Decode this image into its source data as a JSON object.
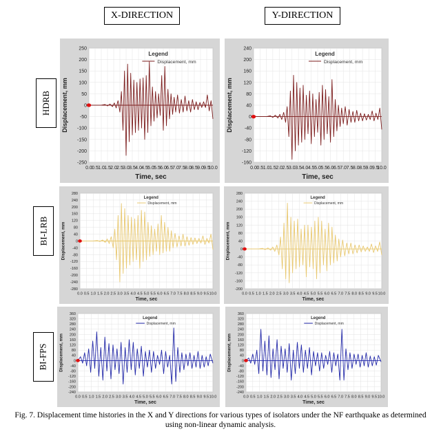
{
  "headers": {
    "x": "X-DIRECTION",
    "y": "Y-DIRECTION"
  },
  "row_labels": {
    "hdrb": "HDRB",
    "bi_lrb": "BI-LRB",
    "bi_fps": "BI-FPS"
  },
  "caption": "Fig. 7. Displacement time histories in the X and Y directions for various types of isolators under the NF earthquake as determined using non-linear dynamic analysis.",
  "chart_data": [
    {
      "id": "hdrb-x",
      "type": "line",
      "color": "#7b1c1c",
      "xlabel": "Time,  sec",
      "ylabel": "Displacement, mm",
      "legend_title": "Legend",
      "series_name": "Displacement, mm",
      "legend_position": "top-right",
      "xlim": [
        0,
        10
      ],
      "xticks": [
        0,
        0.5,
        1,
        1.5,
        2,
        2.5,
        3,
        3.5,
        4,
        4.5,
        5,
        5.5,
        6,
        6.5,
        7,
        7.5,
        8,
        8.5,
        9,
        9.5,
        10
      ],
      "ylim": [
        -250,
        250
      ],
      "yticks": [
        250,
        200,
        150,
        100,
        50,
        0,
        -50,
        -100,
        -150,
        -200,
        -250
      ],
      "t": [
        0,
        0.5,
        1.0,
        1.3,
        1.5,
        1.7,
        1.9,
        2.05,
        2.2,
        2.35,
        2.5,
        2.62,
        2.75,
        2.87,
        3.0,
        3.12,
        3.25,
        3.37,
        3.5,
        3.62,
        3.75,
        3.87,
        4.0,
        4.12,
        4.25,
        4.37,
        4.5,
        4.62,
        4.75,
        4.87,
        5.0,
        5.12,
        5.25,
        5.37,
        5.5,
        5.62,
        5.75,
        5.87,
        6.0,
        6.12,
        6.25,
        6.37,
        6.5,
        6.62,
        6.75,
        6.87,
        7.0,
        7.15,
        7.3,
        7.45,
        7.6,
        7.75,
        7.9,
        8.05,
        8.2,
        8.35,
        8.5,
        8.65,
        8.8,
        8.95,
        9.1,
        9.25,
        9.4,
        9.55,
        9.7,
        9.85,
        10.0
      ],
      "values": [
        0,
        0,
        0,
        3,
        -3,
        5,
        -6,
        10,
        -12,
        20,
        -30,
        60,
        -110,
        150,
        -220,
        180,
        -160,
        140,
        -130,
        110,
        -120,
        100,
        -110,
        115,
        -100,
        120,
        -150,
        130,
        -120,
        190,
        -90,
        80,
        -70,
        60,
        -55,
        50,
        -45,
        130,
        -110,
        170,
        -90,
        70,
        -60,
        50,
        -40,
        35,
        -30,
        45,
        -35,
        25,
        -30,
        40,
        -25,
        20,
        -30,
        25,
        -20,
        15,
        -20,
        12,
        -10,
        15,
        -10,
        45,
        -25,
        20,
        -60
      ]
    },
    {
      "id": "hdrb-y",
      "type": "line",
      "color": "#7b1c1c",
      "xlabel": "Time,  sec",
      "ylabel": "Displacement, mm",
      "legend_title": "Legend",
      "series_name": "Displacement, mm",
      "legend_position": "top-right",
      "xlim": [
        0,
        10
      ],
      "xticks": [
        0,
        0.5,
        1,
        1.5,
        2,
        2.5,
        3,
        3.5,
        4,
        4.5,
        5,
        5.5,
        6,
        6.5,
        7,
        7.5,
        8,
        8.5,
        9,
        9.5,
        10
      ],
      "ylim": [
        -160,
        240
      ],
      "yticks": [
        240,
        200,
        160,
        120,
        80,
        40,
        0,
        -40,
        -80,
        -120,
        -160
      ],
      "t": [
        0,
        0.5,
        1.0,
        1.3,
        1.5,
        1.7,
        1.9,
        2.05,
        2.2,
        2.35,
        2.5,
        2.62,
        2.75,
        2.87,
        3.0,
        3.12,
        3.25,
        3.37,
        3.5,
        3.62,
        3.75,
        3.87,
        4.0,
        4.12,
        4.25,
        4.37,
        4.5,
        4.62,
        4.75,
        4.87,
        5.0,
        5.12,
        5.25,
        5.37,
        5.5,
        5.62,
        5.75,
        5.87,
        6.0,
        6.12,
        6.25,
        6.37,
        6.5,
        6.62,
        6.75,
        6.87,
        7.0,
        7.15,
        7.3,
        7.45,
        7.6,
        7.75,
        7.9,
        8.05,
        8.2,
        8.35,
        8.5,
        8.65,
        8.8,
        8.95,
        9.1,
        9.25,
        9.4,
        9.55,
        9.7,
        9.85,
        10.0
      ],
      "values": [
        0,
        0,
        0,
        3,
        -3,
        5,
        -5,
        8,
        -10,
        15,
        -20,
        35,
        -70,
        90,
        -150,
        145,
        -120,
        120,
        -100,
        100,
        -90,
        110,
        -80,
        75,
        -60,
        90,
        -95,
        80,
        -70,
        60,
        -55,
        85,
        -100,
        110,
        -80,
        95,
        -60,
        70,
        -90,
        130,
        -70,
        60,
        -50,
        40,
        -35,
        30,
        -25,
        35,
        -30,
        25,
        -20,
        18,
        -20,
        22,
        -15,
        12,
        -15,
        10,
        -12,
        8,
        -10,
        20,
        -15,
        12,
        -10,
        30,
        -45
      ]
    },
    {
      "id": "bilrb-x",
      "type": "line",
      "color": "#e8c870",
      "xlabel": "Time,  sec",
      "ylabel": "Displacement,  mm",
      "legend_title": "Legend",
      "series_name": "Displacement, mm",
      "legend_position": "top-right",
      "xlim": [
        0,
        10
      ],
      "xticks": [
        0,
        0.5,
        1,
        1.5,
        2,
        2.5,
        3,
        3.5,
        4,
        4.5,
        5,
        5.5,
        6,
        6.5,
        7,
        7.5,
        8,
        8.5,
        9,
        9.5,
        10
      ],
      "ylim": [
        -280,
        280
      ],
      "yticks": [
        280,
        240,
        200,
        160,
        120,
        80,
        40,
        0,
        -40,
        -80,
        -120,
        -160,
        -200,
        -240,
        -280
      ],
      "t": [
        0,
        0.5,
        1.0,
        1.3,
        1.5,
        1.7,
        1.9,
        2.05,
        2.2,
        2.35,
        2.5,
        2.62,
        2.75,
        2.87,
        3.0,
        3.12,
        3.25,
        3.37,
        3.5,
        3.62,
        3.75,
        3.87,
        4.0,
        4.12,
        4.25,
        4.37,
        4.5,
        4.62,
        4.75,
        4.87,
        5.0,
        5.12,
        5.25,
        5.37,
        5.5,
        5.62,
        5.75,
        5.87,
        6.0,
        6.12,
        6.25,
        6.37,
        6.5,
        6.62,
        6.75,
        6.87,
        7.0,
        7.15,
        7.3,
        7.45,
        7.6,
        7.75,
        7.9,
        8.05,
        8.2,
        8.35,
        8.5,
        8.65,
        8.8,
        8.95,
        9.1,
        9.25,
        9.4,
        9.55,
        9.7,
        9.85,
        10.0
      ],
      "values": [
        0,
        0,
        0,
        3,
        -3,
        6,
        -8,
        12,
        -15,
        25,
        -40,
        70,
        -110,
        150,
        -240,
        220,
        -190,
        190,
        -160,
        150,
        -140,
        140,
        -120,
        130,
        -110,
        150,
        -160,
        180,
        -120,
        170,
        -110,
        110,
        -90,
        90,
        -80,
        70,
        -60,
        100,
        -80,
        150,
        -70,
        110,
        -60,
        80,
        -60,
        60,
        -40,
        45,
        -35,
        30,
        -30,
        40,
        -30,
        25,
        -25,
        20,
        -20,
        18,
        -15,
        15,
        -12,
        30,
        -20,
        15,
        -12,
        40,
        -50
      ]
    },
    {
      "id": "bilrb-y",
      "type": "line",
      "color": "#e8c870",
      "xlabel": "Time,  sec",
      "ylabel": "Displacement,  mm",
      "legend_title": "Legend",
      "series_name": "Displacement, mm",
      "legend_position": "top-right",
      "xlim": [
        0,
        10
      ],
      "xticks": [
        0,
        0.5,
        1,
        1.5,
        2,
        2.5,
        3,
        3.5,
        4,
        4.5,
        5,
        5.5,
        6,
        6.5,
        7,
        7.5,
        8,
        8.5,
        9,
        9.5,
        10
      ],
      "ylim": [
        -200,
        280
      ],
      "yticks": [
        280,
        240,
        200,
        160,
        120,
        80,
        40,
        0,
        -40,
        -80,
        -120,
        -160,
        -200
      ],
      "t": [
        0,
        0.5,
        1.0,
        1.3,
        1.5,
        1.7,
        1.9,
        2.05,
        2.2,
        2.35,
        2.5,
        2.62,
        2.75,
        2.87,
        3.0,
        3.12,
        3.25,
        3.37,
        3.5,
        3.62,
        3.75,
        3.87,
        4.0,
        4.12,
        4.25,
        4.37,
        4.5,
        4.62,
        4.75,
        4.87,
        5.0,
        5.12,
        5.25,
        5.37,
        5.5,
        5.62,
        5.75,
        5.87,
        6.0,
        6.12,
        6.25,
        6.37,
        6.5,
        6.62,
        6.75,
        6.87,
        7.0,
        7.15,
        7.3,
        7.45,
        7.6,
        7.75,
        7.9,
        8.05,
        8.2,
        8.35,
        8.5,
        8.65,
        8.8,
        8.95,
        9.1,
        9.25,
        9.4,
        9.55,
        9.7,
        9.85,
        10.0
      ],
      "values": [
        0,
        0,
        0,
        3,
        -3,
        5,
        -6,
        10,
        -12,
        20,
        -30,
        60,
        -100,
        130,
        -150,
        230,
        -170,
        160,
        -120,
        140,
        -100,
        150,
        -90,
        100,
        -80,
        120,
        -140,
        120,
        -90,
        110,
        -100,
        140,
        -150,
        160,
        -120,
        140,
        -80,
        100,
        -110,
        130,
        -80,
        110,
        -70,
        70,
        -60,
        50,
        -40,
        45,
        -35,
        30,
        -25,
        30,
        -25,
        20,
        -20,
        20,
        -15,
        15,
        -12,
        10,
        -12,
        25,
        -18,
        15,
        -12,
        35,
        -30
      ]
    },
    {
      "id": "bifps-x",
      "type": "line",
      "color": "#2228a8",
      "xlabel": "Time,  sec",
      "ylabel": "Displacement,  mm",
      "legend_title": "Legend",
      "series_name": "Displacement, mm",
      "legend_position": "top-right",
      "xlim": [
        0,
        10
      ],
      "xticks": [
        0,
        0.5,
        1,
        1.5,
        2,
        2.5,
        3,
        3.5,
        4,
        4.5,
        5,
        5.5,
        6,
        6.5,
        7,
        7.5,
        8,
        8.5,
        9,
        9.5,
        10
      ],
      "ylim": [
        -240,
        360
      ],
      "yticks": [
        360,
        320,
        280,
        240,
        200,
        160,
        120,
        80,
        40,
        0,
        -40,
        -80,
        -120,
        -160,
        -200,
        -240
      ],
      "t": [
        0,
        0.2,
        0.35,
        0.5,
        0.65,
        0.8,
        0.95,
        1.1,
        1.25,
        1.4,
        1.55,
        1.7,
        1.85,
        2.0,
        2.15,
        2.3,
        2.45,
        2.6,
        2.75,
        2.9,
        3.05,
        3.2,
        3.35,
        3.5,
        3.65,
        3.8,
        3.95,
        4.1,
        4.25,
        4.4,
        4.55,
        4.7,
        4.85,
        5.0,
        5.15,
        5.3,
        5.45,
        5.6,
        5.75,
        5.9,
        6.05,
        6.2,
        6.35,
        6.5,
        6.65,
        6.8,
        6.95,
        7.1,
        7.25,
        7.4,
        7.55,
        7.7,
        7.85,
        8.0,
        8.15,
        8.3,
        8.45,
        8.6,
        8.75,
        8.9,
        9.05,
        9.2,
        9.35,
        9.5,
        9.65,
        9.8,
        10.0
      ],
      "values": [
        0,
        30,
        -20,
        60,
        -40,
        90,
        -90,
        150,
        -60,
        220,
        -120,
        100,
        -150,
        180,
        -80,
        130,
        -140,
        120,
        -70,
        90,
        -100,
        140,
        -180,
        100,
        -90,
        160,
        -70,
        140,
        -110,
        90,
        -60,
        110,
        -120,
        70,
        -50,
        80,
        -90,
        70,
        -60,
        40,
        -30,
        80,
        -100,
        70,
        -50,
        40,
        -180,
        250,
        -160,
        100,
        -90,
        60,
        -70,
        50,
        -40,
        60,
        -60,
        40,
        -50,
        70,
        -60,
        40,
        -50,
        30,
        -40,
        50,
        -20
      ]
    },
    {
      "id": "bifps-y",
      "type": "line",
      "color": "#2228a8",
      "xlabel": "Time,  sec",
      "ylabel": "Displacement,  mm",
      "legend_title": "Legend",
      "series_name": "Displacement, mm",
      "legend_position": "top-right",
      "xlim": [
        0,
        10
      ],
      "xticks": [
        0,
        0.5,
        1,
        1.5,
        2,
        2.5,
        3,
        3.5,
        4,
        4.5,
        5,
        5.5,
        6,
        6.5,
        7,
        7.5,
        8,
        8.5,
        9,
        9.5,
        10
      ],
      "ylim": [
        -240,
        360
      ],
      "yticks": [
        360,
        320,
        280,
        240,
        200,
        160,
        120,
        80,
        40,
        0,
        -40,
        -80,
        -120,
        -160,
        -200,
        -240
      ],
      "t": [
        0,
        0.2,
        0.35,
        0.5,
        0.65,
        0.8,
        0.95,
        1.1,
        1.25,
        1.4,
        1.55,
        1.7,
        1.85,
        2.0,
        2.15,
        2.3,
        2.45,
        2.6,
        2.75,
        2.9,
        3.05,
        3.2,
        3.35,
        3.5,
        3.65,
        3.8,
        3.95,
        4.1,
        4.25,
        4.4,
        4.55,
        4.7,
        4.85,
        5.0,
        5.15,
        5.3,
        5.45,
        5.6,
        5.75,
        5.9,
        6.05,
        6.2,
        6.35,
        6.5,
        6.65,
        6.8,
        6.95,
        7.1,
        7.25,
        7.4,
        7.55,
        7.7,
        7.85,
        8.0,
        8.15,
        8.3,
        8.45,
        8.6,
        8.75,
        8.9,
        9.05,
        9.2,
        9.35,
        9.5,
        9.65,
        9.8,
        10.0
      ],
      "values": [
        0,
        20,
        -20,
        50,
        -30,
        80,
        -100,
        240,
        -80,
        150,
        -110,
        190,
        -130,
        90,
        -70,
        160,
        -140,
        110,
        -60,
        90,
        -90,
        130,
        -150,
        80,
        -100,
        140,
        -60,
        120,
        -90,
        80,
        -60,
        100,
        -110,
        70,
        -40,
        60,
        -80,
        60,
        -60,
        40,
        -30,
        70,
        -90,
        60,
        -40,
        50,
        -150,
        240,
        -150,
        90,
        -70,
        60,
        -60,
        50,
        -30,
        50,
        -50,
        40,
        -40,
        60,
        -50,
        35,
        -40,
        30,
        -35,
        40,
        -10
      ]
    }
  ]
}
